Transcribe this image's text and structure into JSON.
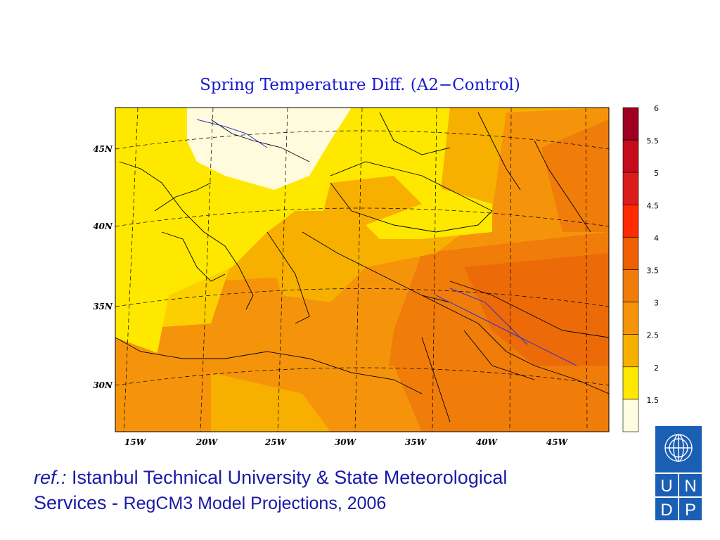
{
  "title": "Spring Temperature Diff. (A2−Control)",
  "axes": {
    "lat_labels": [
      "45N",
      "40N",
      "35N",
      "30N"
    ],
    "lon_labels": [
      "15W",
      "20W",
      "25W",
      "30W",
      "35W",
      "40W",
      "45W"
    ]
  },
  "legend": {
    "ticks": [
      "6",
      "5.5",
      "5",
      "4.5",
      "4",
      "3.5",
      "3",
      "2.5",
      "2",
      "1.5"
    ],
    "colors_top_to_bottom": [
      "#a00020",
      "#c40c1c",
      "#dc1c1c",
      "#ff2a00",
      "#f06000",
      "#f27c0a",
      "#f5940a",
      "#f8b000",
      "#ffe800",
      "#fffde0"
    ]
  },
  "colors": {
    "cool_region": "#fffbdc",
    "yellow": "#ffe800",
    "yellow_orange": "#fcd000",
    "orange_light": "#f8b000",
    "orange": "#f5940a",
    "orange_dark": "#f07c0a",
    "orange_deep": "#ec6a08",
    "text_blue": "#1a1aa6",
    "title_blue": "#1a1ad0",
    "logo_blue": "#1a5fb4"
  },
  "reference": {
    "prefix": "ref.:",
    "line1": "Istanbul Technical University & State Meteorological",
    "line2_a": "Services - ",
    "line2_b": "RegCM3 Model Projections, 2006"
  },
  "logo": {
    "letters": [
      "U",
      "N",
      "D",
      "P"
    ]
  }
}
